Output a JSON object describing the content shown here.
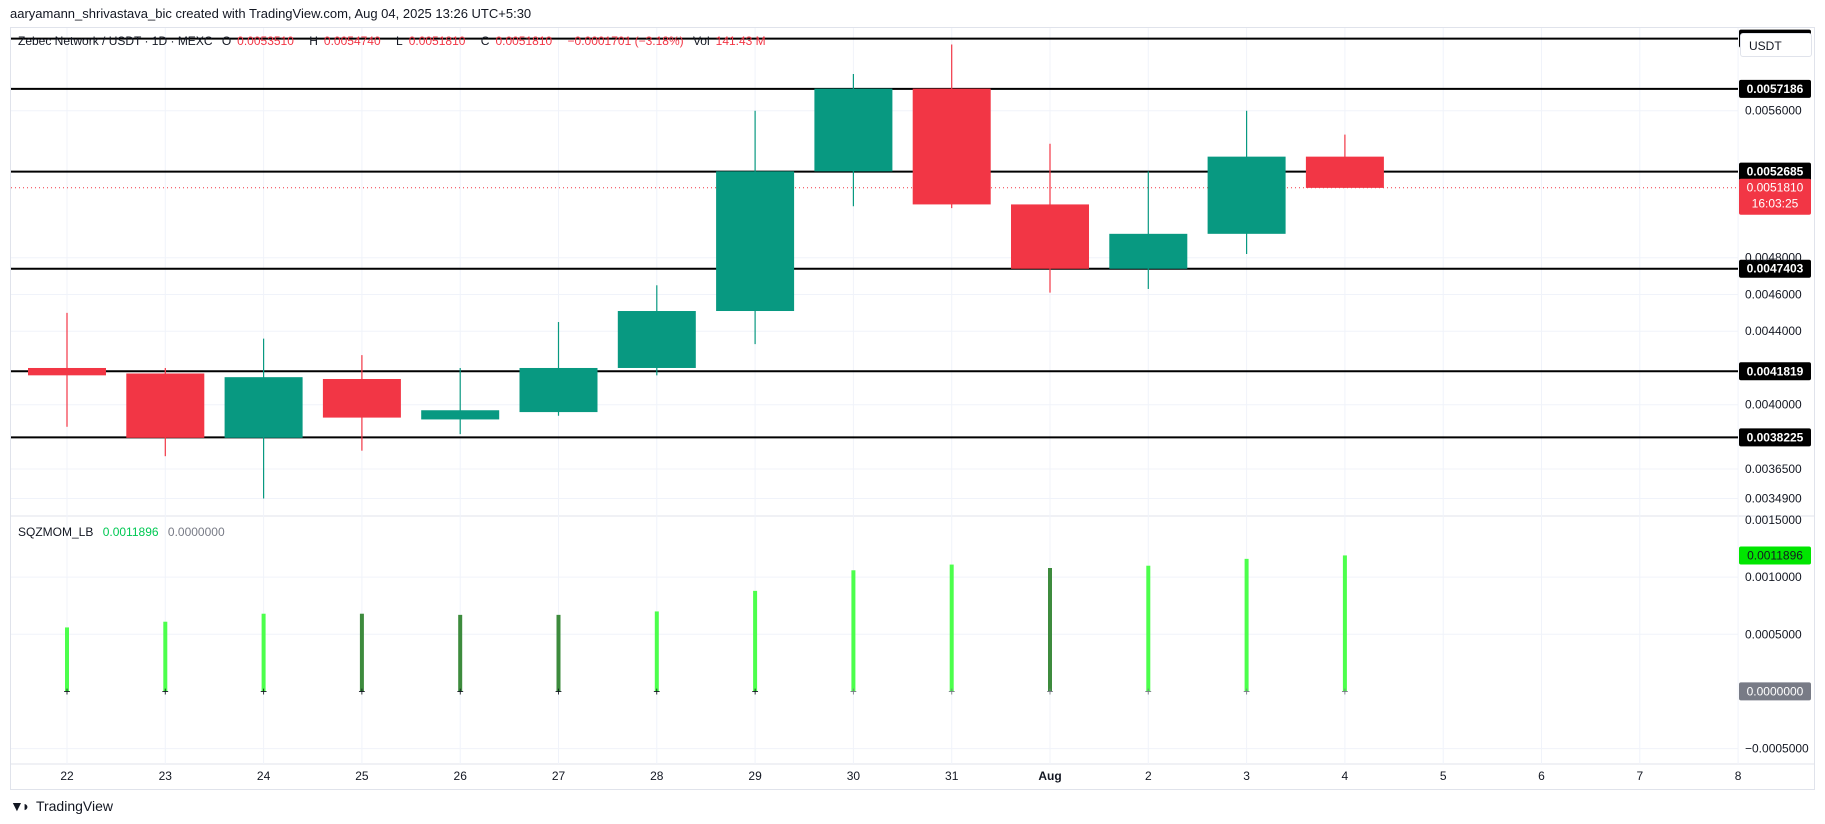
{
  "attribution": "aaryamann_shrivastava_bic created with TradingView.com, Aug 04, 2025 13:26 UTC+5:30",
  "legend": {
    "symbol": "Zebec Network / USDT · 1D · MEXC",
    "o_label": "O",
    "o_value": "0.0053510",
    "h_label": "H",
    "h_value": "0.0054740",
    "l_label": "L",
    "l_value": "0.0051810",
    "c_label": "C",
    "c_value": "0.0051810",
    "change": "−0.0001701 (−3.18%)",
    "vol_label": "Vol",
    "vol_value": "141.43 M"
  },
  "currency_button": "USDT",
  "indicator_legend": {
    "name": "SQZMOM_LB",
    "value1": "0.0011896",
    "value2": "0.0000000"
  },
  "footer": {
    "logo_text": "TradingView"
  },
  "colors": {
    "up": "#089981",
    "down": "#f23645",
    "hist_light": "#4cff4c",
    "hist_dark": "#3d8b3d",
    "level_line": "#000000",
    "grid": "#f0f3fa"
  },
  "chart_data": [
    {
      "type": "candlestick",
      "x_labels": [
        "22",
        "23",
        "24",
        "25",
        "26",
        "27",
        "28",
        "29",
        "30",
        "31",
        "Aug",
        "2",
        "3",
        "4",
        "5",
        "6",
        "7",
        "8"
      ],
      "candles": [
        {
          "x": "22",
          "open": 0.0042,
          "high": 0.0045,
          "low": 0.00388,
          "close": 0.00416
        },
        {
          "x": "23",
          "open": 0.00417,
          "high": 0.0042,
          "low": 0.00372,
          "close": 0.00382
        },
        {
          "x": "24",
          "open": 0.00382,
          "high": 0.00436,
          "low": 0.00349,
          "close": 0.00415
        },
        {
          "x": "25",
          "open": 0.00414,
          "high": 0.00427,
          "low": 0.00375,
          "close": 0.00393
        },
        {
          "x": "26",
          "open": 0.00392,
          "high": 0.0042,
          "low": 0.00384,
          "close": 0.00397
        },
        {
          "x": "27",
          "open": 0.00396,
          "high": 0.00445,
          "low": 0.00394,
          "close": 0.0042
        },
        {
          "x": "28",
          "open": 0.0042,
          "high": 0.00465,
          "low": 0.00416,
          "close": 0.00451
        },
        {
          "x": "29",
          "open": 0.00451,
          "high": 0.0056,
          "low": 0.00433,
          "close": 0.00527
        },
        {
          "x": "30",
          "open": 0.00527,
          "high": 0.0058,
          "low": 0.00508,
          "close": 0.00572
        },
        {
          "x": "31",
          "open": 0.00572,
          "high": 0.00596,
          "low": 0.00507,
          "close": 0.00509
        },
        {
          "x": "Aug",
          "open": 0.00509,
          "high": 0.00542,
          "low": 0.00461,
          "close": 0.00474
        },
        {
          "x": "2",
          "open": 0.00474,
          "high": 0.00527,
          "low": 0.00463,
          "close": 0.00493
        },
        {
          "x": "3",
          "open": 0.00493,
          "high": 0.0056,
          "low": 0.00482,
          "close": 0.00535
        },
        {
          "x": "4",
          "open": 0.00535,
          "high": 0.00547,
          "low": 0.00518,
          "close": 0.00518
        }
      ],
      "y_ticks": [
        "0.0056000",
        "0.0048000",
        "0.0046000",
        "0.0044000",
        "0.0040000",
        "0.0036500",
        "0.0034900"
      ],
      "horizontal_levels": [
        "0.0059924",
        "0.0057186",
        "0.0052685",
        "0.0047403",
        "0.0041819",
        "0.0038225"
      ],
      "current_price": "0.0051810",
      "countdown": "16:03:25"
    },
    {
      "type": "bar",
      "name": "SQZMOM_LB",
      "x_labels": [
        "22",
        "23",
        "24",
        "25",
        "26",
        "27",
        "28",
        "29",
        "30",
        "31",
        "Aug",
        "2",
        "3",
        "4"
      ],
      "values": [
        0.00056,
        0.00061,
        0.00068,
        0.00068,
        0.00067,
        0.00067,
        0.0007,
        0.00088,
        0.00106,
        0.00111,
        0.00108,
        0.0011,
        0.00116,
        0.00119
      ],
      "shades": [
        "light",
        "light",
        "light",
        "dark",
        "dark",
        "dark",
        "light",
        "light",
        "light",
        "light",
        "dark",
        "light",
        "light",
        "light"
      ],
      "y_ticks": [
        "0.0015000",
        "0.0010000",
        "0.0005000",
        "−0.0005000"
      ],
      "last_value": "0.0011896",
      "zero_value": "0.0000000"
    }
  ]
}
